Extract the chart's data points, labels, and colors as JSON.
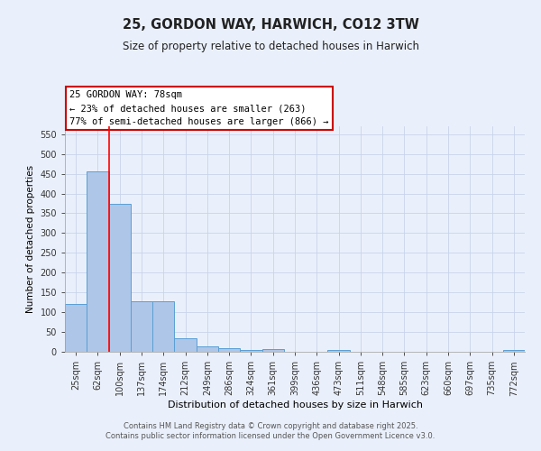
{
  "title": "25, GORDON WAY, HARWICH, CO12 3TW",
  "subtitle": "Size of property relative to detached houses in Harwich",
  "xlabel": "Distribution of detached houses by size in Harwich",
  "ylabel": "Number of detached properties",
  "footer_line1": "Contains HM Land Registry data © Crown copyright and database right 2025.",
  "footer_line2": "Contains public sector information licensed under the Open Government Licence v3.0.",
  "annotation_title": "25 GORDON WAY: 78sqm",
  "annotation_line1": "← 23% of detached houses are smaller (263)",
  "annotation_line2": "77% of semi-detached houses are larger (866) →",
  "bar_labels": [
    "25sqm",
    "62sqm",
    "100sqm",
    "137sqm",
    "174sqm",
    "212sqm",
    "249sqm",
    "286sqm",
    "324sqm",
    "361sqm",
    "399sqm",
    "436sqm",
    "473sqm",
    "511sqm",
    "548sqm",
    "585sqm",
    "623sqm",
    "660sqm",
    "697sqm",
    "735sqm",
    "772sqm"
  ],
  "bar_values": [
    120,
    457,
    375,
    128,
    128,
    35,
    13,
    9,
    5,
    6,
    1,
    0,
    5,
    0,
    0,
    0,
    0,
    0,
    0,
    0,
    5
  ],
  "bar_color": "#aec6e8",
  "bar_edge_color": "#5a9fd4",
  "bg_color": "#eaf0fb",
  "grid_color": "#c8d4eb",
  "redline_x": 1.5,
  "ylim": [
    0,
    570
  ],
  "yticks": [
    0,
    50,
    100,
    150,
    200,
    250,
    300,
    350,
    400,
    450,
    500,
    550
  ],
  "annotation_box_color": "#cc0000",
  "title_fontsize": 10.5,
  "subtitle_fontsize": 8.5
}
